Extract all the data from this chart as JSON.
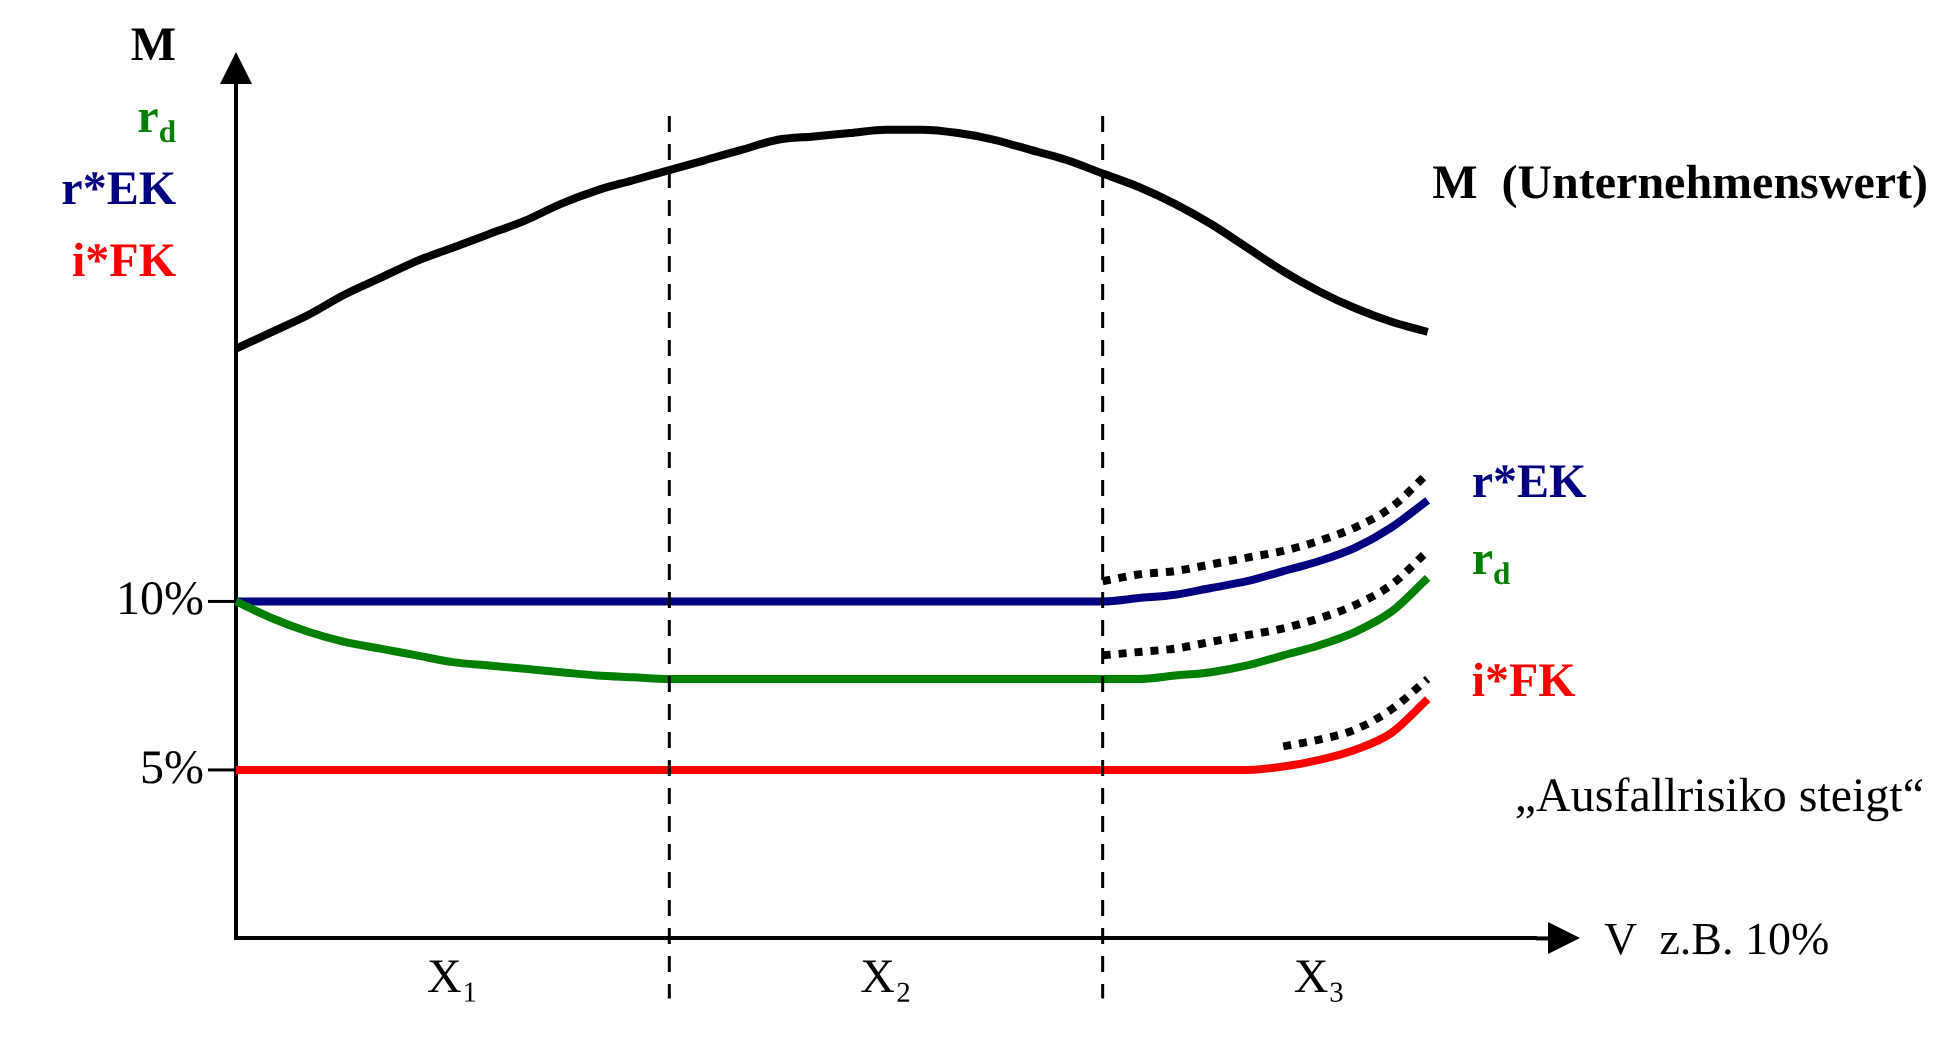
{
  "chart_data": {
    "type": "line",
    "ylabel": "M\nr$_{d}$\nr*EK\ni*FK",
    "xlabel": "V  z.B. 10%",
    "categories": [
      null,
      null,
      null,
      null,
      null,
      null,
      "X₁",
      null,
      null,
      null,
      null,
      null,
      null,
      null,
      null,
      null,
      null,
      null,
      "X₂",
      null,
      null,
      null,
      null,
      null,
      null,
      null,
      null,
      null,
      null,
      null,
      "X₃",
      null,
      null,
      null,
      null,
      null,
      null
    ],
    "ylim": [
      0,
      25
    ],
    "yticks": [
      {
        "value": 5,
        "label": "5%"
      },
      {
        "value": 10,
        "label": "10%"
      }
    ],
    "grid": "x",
    "marker": "none",
    "line_style": "solid",
    "annotations": [
      "„Ausfallrisiko steigt“"
    ],
    "series": [
      {
        "name": "M  (Unternehmenswert)",
        "color": "#000000",
        "values": [
          17.5,
          18.0,
          18.5,
          19.1,
          19.6,
          20.1,
          20.5,
          20.9,
          21.3,
          21.8,
          22.2,
          22.5,
          22.8,
          23.1,
          23.4,
          23.7,
          23.8,
          23.9,
          24.0,
          24.0,
          23.9,
          23.7,
          23.4,
          23.1,
          22.7,
          22.3,
          21.8,
          21.2,
          20.5,
          19.8,
          19.2,
          18.7,
          18.3,
          18.0,
          null,
          null,
          null
        ]
      },
      {
        "name": "r$_{d}$",
        "color": "#008000",
        "values": [
          10,
          9.5,
          9.1,
          8.8,
          8.6,
          8.4,
          8.2,
          8.1,
          8.0,
          7.9,
          7.8,
          7.75,
          7.7,
          7.7,
          7.7,
          7.7,
          7.7,
          7.7,
          7.7,
          7.7,
          7.7,
          7.7,
          7.7,
          7.7,
          7.7,
          7.7,
          7.8,
          7.9,
          8.1,
          8.4,
          8.7,
          9.1,
          9.7,
          10.7,
          null,
          null,
          null
        ]
      },
      {
        "name": "r*EK",
        "color": "#000080",
        "values": [
          10,
          10,
          10,
          10,
          10,
          10,
          10,
          10,
          10,
          10,
          10,
          10,
          10,
          10,
          10,
          10,
          10,
          10,
          10,
          10,
          10,
          10,
          10,
          10,
          10,
          10.1,
          10.2,
          10.4,
          10.6,
          10.9,
          11.2,
          11.6,
          12.2,
          13.0,
          null,
          null,
          null
        ]
      },
      {
        "name": "i*FK",
        "color": "#ff0000",
        "values": [
          5,
          5,
          5,
          5,
          5,
          5,
          5,
          5,
          5,
          5,
          5,
          5,
          5,
          5,
          5,
          5,
          5,
          5,
          5,
          5,
          5,
          5,
          5,
          5,
          5,
          5,
          5,
          5,
          5,
          5.1,
          5.3,
          5.6,
          6.1,
          7.1,
          null,
          null,
          null
        ]
      },
      {
        "color": "#000000",
        "line_style": "dotted",
        "values": [
          null,
          null,
          null,
          null,
          null,
          null,
          null,
          null,
          null,
          null,
          null,
          null,
          null,
          null,
          null,
          null,
          null,
          null,
          null,
          null,
          null,
          null,
          null,
          null,
          10.6,
          10.8,
          10.9,
          11.1,
          11.3,
          11.5,
          11.8,
          12.2,
          12.8,
          13.8,
          null,
          null,
          null
        ]
      },
      {
        "color": "#000000",
        "line_style": "dotted",
        "values": [
          null,
          null,
          null,
          null,
          null,
          null,
          null,
          null,
          null,
          null,
          null,
          null,
          null,
          null,
          null,
          null,
          null,
          null,
          null,
          null,
          null,
          null,
          null,
          null,
          8.4,
          8.5,
          8.6,
          8.8,
          9.0,
          9.2,
          9.5,
          9.9,
          10.5,
          11.5,
          null,
          null,
          null
        ]
      },
      {
        "color": "#000000",
        "line_style": "dotted",
        "values": [
          null,
          null,
          null,
          null,
          null,
          null,
          null,
          null,
          null,
          null,
          null,
          null,
          null,
          null,
          null,
          null,
          null,
          null,
          null,
          null,
          null,
          null,
          null,
          null,
          null,
          null,
          null,
          null,
          null,
          5.7,
          5.9,
          6.2,
          6.8,
          7.7,
          null,
          null,
          null
        ]
      }
    ]
  }
}
